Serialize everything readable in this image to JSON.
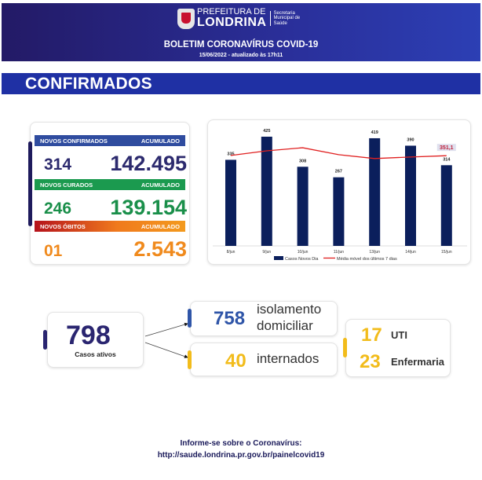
{
  "header": {
    "logo_line1": "PREFEITURA DE",
    "logo_line2": "LONDRINA",
    "logo_secretaria": [
      "Secretaria",
      "Municipal de",
      "Saúde"
    ],
    "title": "BOLETIM CORONAVÍRUS COVID-19",
    "date": "15/06/2022 - atualizado às 17h11"
  },
  "section_title": "CONFIRMADOS",
  "summary": {
    "confirmados": {
      "label": "NOVOS CONFIRMADOS",
      "acc_label": "ACUMULADO",
      "new": "314",
      "total": "142.495",
      "color": "#2c2a6e"
    },
    "curados": {
      "label": "NOVOS CURADOS",
      "acc_label": "ACUMULADO",
      "new": "246",
      "total": "139.154",
      "color": "#1a8f4a"
    },
    "obitos": {
      "label": "NOVOS ÓBITOS",
      "acc_label": "ACUMULADO",
      "new": "01",
      "total": "2.543",
      "color": "#f08a1d"
    }
  },
  "chart_data": {
    "type": "bar",
    "categories": [
      "8/jun",
      "9/jun",
      "10/jun",
      "11/jun",
      "13/jun",
      "14/jun",
      "15/jun"
    ],
    "series": [
      {
        "name": "Casos Novos Dia",
        "type": "bar",
        "values": [
          335,
          425,
          308,
          267,
          419,
          390,
          314
        ],
        "color": "#0b1f5c"
      },
      {
        "name": "Média móvel dos últimos 7 dias",
        "type": "line",
        "values": [
          352,
          370,
          382,
          355,
          340,
          346,
          351.1
        ],
        "color": "#e02020"
      }
    ],
    "highlight_label": "351,1",
    "ylim": [
      0,
      460
    ]
  },
  "active": {
    "value": "798",
    "label": "Casos ativos",
    "isolamento": {
      "value": "758",
      "label1": "isolamento",
      "label2": "domiciliar"
    },
    "internados": {
      "value": "40",
      "label": "internados"
    },
    "uti": {
      "value": "17",
      "label": "UTI"
    },
    "enfermaria": {
      "value": "23",
      "label": "Enfermaria"
    }
  },
  "footer": {
    "line1": "Informe-se sobre o Coronavírus:",
    "line2": "http://saude.londrina.pr.gov.br/painelcovid19"
  }
}
